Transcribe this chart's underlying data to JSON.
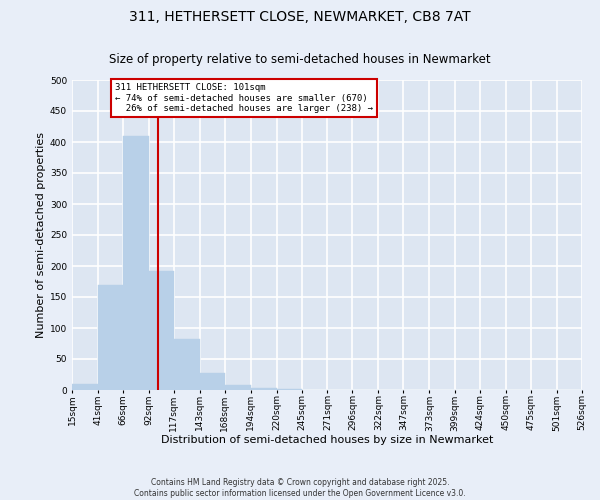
{
  "title": "311, HETHERSETT CLOSE, NEWMARKET, CB8 7AT",
  "subtitle": "Size of property relative to semi-detached houses in Newmarket",
  "xlabel": "Distribution of semi-detached houses by size in Newmarket",
  "ylabel": "Number of semi-detached properties",
  "bin_edges": [
    15,
    41,
    66,
    92,
    117,
    143,
    168,
    194,
    220,
    245,
    271,
    296,
    322,
    347,
    373,
    399,
    424,
    450,
    475,
    501,
    526
  ],
  "bin_labels": [
    "15sqm",
    "41sqm",
    "66sqm",
    "92sqm",
    "117sqm",
    "143sqm",
    "168sqm",
    "194sqm",
    "220sqm",
    "245sqm",
    "271sqm",
    "296sqm",
    "322sqm",
    "347sqm",
    "373sqm",
    "399sqm",
    "424sqm",
    "450sqm",
    "475sqm",
    "501sqm",
    "526sqm"
  ],
  "counts": [
    10,
    170,
    410,
    192,
    82,
    28,
    8,
    3,
    1,
    0,
    0,
    0,
    0,
    0,
    0,
    0,
    0,
    0,
    0,
    0
  ],
  "bar_color": "#b8d0e8",
  "bar_edgecolor": "#b8d0e8",
  "vline_x": 101,
  "vline_color": "#cc0000",
  "ylim": [
    0,
    500
  ],
  "yticks": [
    0,
    50,
    100,
    150,
    200,
    250,
    300,
    350,
    400,
    450,
    500
  ],
  "annotation_text": "311 HETHERSETT CLOSE: 101sqm\n← 74% of semi-detached houses are smaller (670)\n  26% of semi-detached houses are larger (238) →",
  "footnote": "Contains HM Land Registry data © Crown copyright and database right 2025.\nContains public sector information licensed under the Open Government Licence v3.0.",
  "bg_color": "#e8eef8",
  "plot_bg_color": "#dde6f2",
  "grid_color": "#ffffff",
  "title_fontsize": 10,
  "subtitle_fontsize": 8.5,
  "axis_label_fontsize": 8,
  "tick_fontsize": 6.5,
  "footnote_fontsize": 5.5
}
